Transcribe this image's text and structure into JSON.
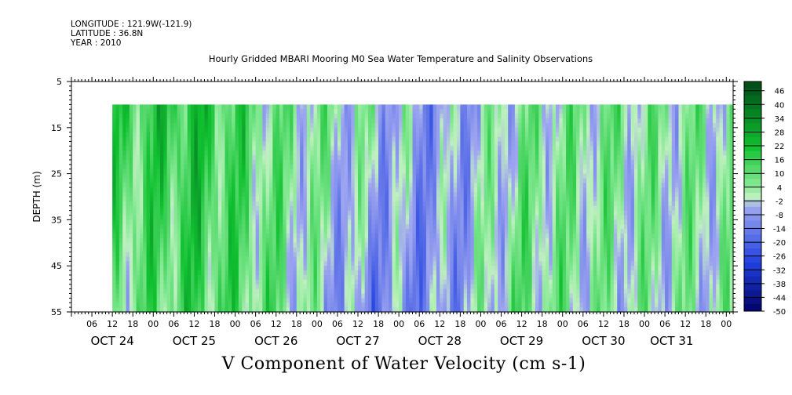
{
  "header": {
    "longitude": "LONGITUDE : 121.9W(-121.9)",
    "latitude": "LATITUDE : 36.8N",
    "year": "YEAR : 2010"
  },
  "chart_data": {
    "type": "heatmap",
    "title": "Hourly Gridded MBARI Mooring M0 Sea Water Temperature and Salinity Observations",
    "xlabel": "V Component of Water Velocity (cm s-1)",
    "ylabel": "DEPTH (m)",
    "y_range": [
      5,
      55
    ],
    "y_inverted": true,
    "y_ticks": [
      5,
      15,
      25,
      35,
      45,
      55
    ],
    "x_range_hours": [
      0,
      194
    ],
    "data_x_range_hours": [
      12,
      194
    ],
    "data_y_range": [
      10,
      55
    ],
    "x_hour_ticks": [
      "06",
      "12",
      "18",
      "00",
      "06",
      "12",
      "18",
      "00",
      "06",
      "12",
      "18",
      "00",
      "06",
      "12",
      "18",
      "00",
      "06",
      "12",
      "18",
      "00",
      "06",
      "12",
      "18",
      "00",
      "06",
      "12",
      "18",
      "00",
      "06",
      "12",
      "18",
      "00"
    ],
    "x_day_labels": [
      {
        "label": "OCT 24",
        "hour": 12
      },
      {
        "label": "OCT 25",
        "hour": 36
      },
      {
        "label": "OCT 26",
        "hour": 60
      },
      {
        "label": "OCT 27",
        "hour": 84
      },
      {
        "label": "OCT 28",
        "hour": 108
      },
      {
        "label": "OCT 29",
        "hour": 132
      },
      {
        "label": "OCT 30",
        "hour": 156
      },
      {
        "label": "OCT 31",
        "hour": 176
      }
    ],
    "colorbar": {
      "min": -50,
      "max": 50,
      "step": 3,
      "tick_labels": [
        46,
        40,
        34,
        28,
        22,
        16,
        10,
        4,
        -2,
        -8,
        -14,
        -20,
        -26,
        -32,
        -38,
        -44,
        -50
      ]
    },
    "profile_by_day": [
      {
        "day": "OCT 24",
        "v_surface": 14,
        "v_bottom": 6
      },
      {
        "day": "OCT 25",
        "v_surface": 20,
        "v_bottom": 14
      },
      {
        "day": "OCT 26",
        "v_surface": 6,
        "v_bottom": 8
      },
      {
        "day": "OCT 27",
        "v_surface": 2,
        "v_bottom": -10
      },
      {
        "day": "OCT 28",
        "v_surface": -8,
        "v_bottom": -10
      },
      {
        "day": "OCT 29",
        "v_surface": 4,
        "v_bottom": 8
      },
      {
        "day": "OCT 30",
        "v_surface": 6,
        "v_bottom": 2
      },
      {
        "day": "OCT 31",
        "v_surface": 4,
        "v_bottom": 2
      }
    ],
    "palette": {
      "neg_max": "#000060",
      "neg_mid": "#2040e0",
      "neg_light": "#9ea6f0",
      "zero": "#c0f0c0",
      "pos_light": "#80e890",
      "pos_mid": "#10c030",
      "pos_max": "#004a18"
    },
    "grid": false
  }
}
